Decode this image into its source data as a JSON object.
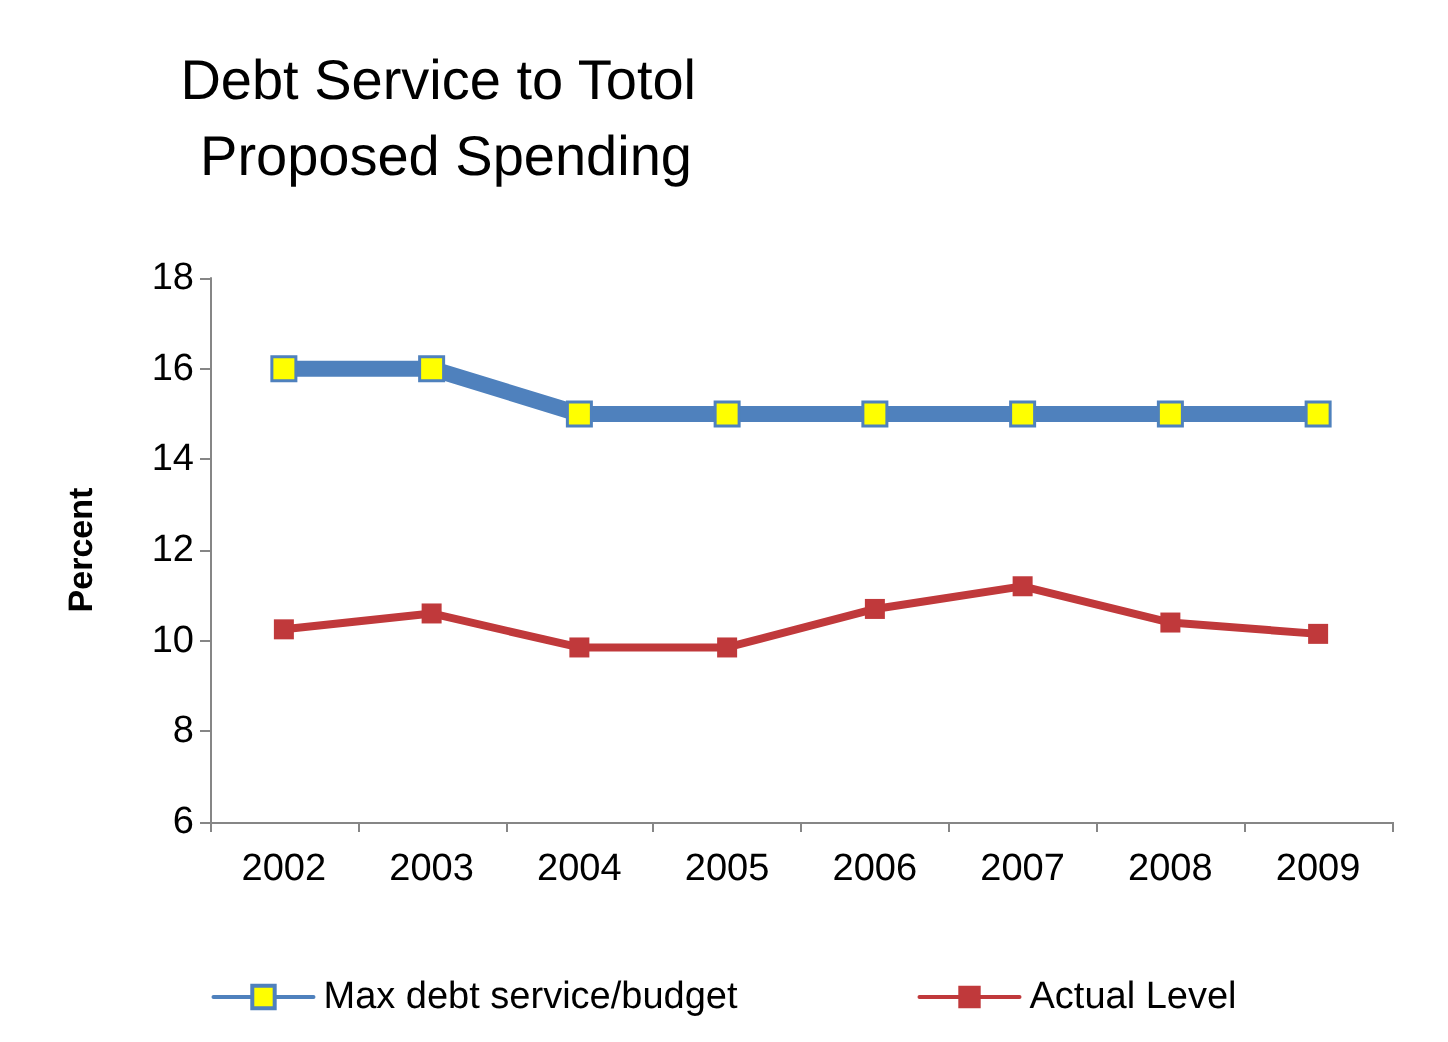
{
  "chart_data": {
    "type": "line",
    "title": "Debt Service to Totol Proposed Spending",
    "ylabel": "Percent",
    "categories": [
      "2002",
      "2003",
      "2004",
      "2005",
      "2006",
      "2007",
      "2008",
      "2009"
    ],
    "series": [
      {
        "name": "Max debt service/budget",
        "color": "#4f81bd",
        "values": [
          16,
          16,
          15,
          15,
          15,
          15,
          15,
          15
        ]
      },
      {
        "name": "Actual Level",
        "color": "#c0393b",
        "values": [
          10.25,
          10.6,
          9.85,
          9.85,
          10.7,
          11.2,
          10.4,
          10.15
        ]
      }
    ],
    "ylim": [
      6,
      18
    ],
    "yticks": [
      6,
      8,
      10,
      12,
      14,
      16,
      18
    ],
    "grid": false,
    "legend": "bottom",
    "marker": "square",
    "line_style": "solid"
  }
}
